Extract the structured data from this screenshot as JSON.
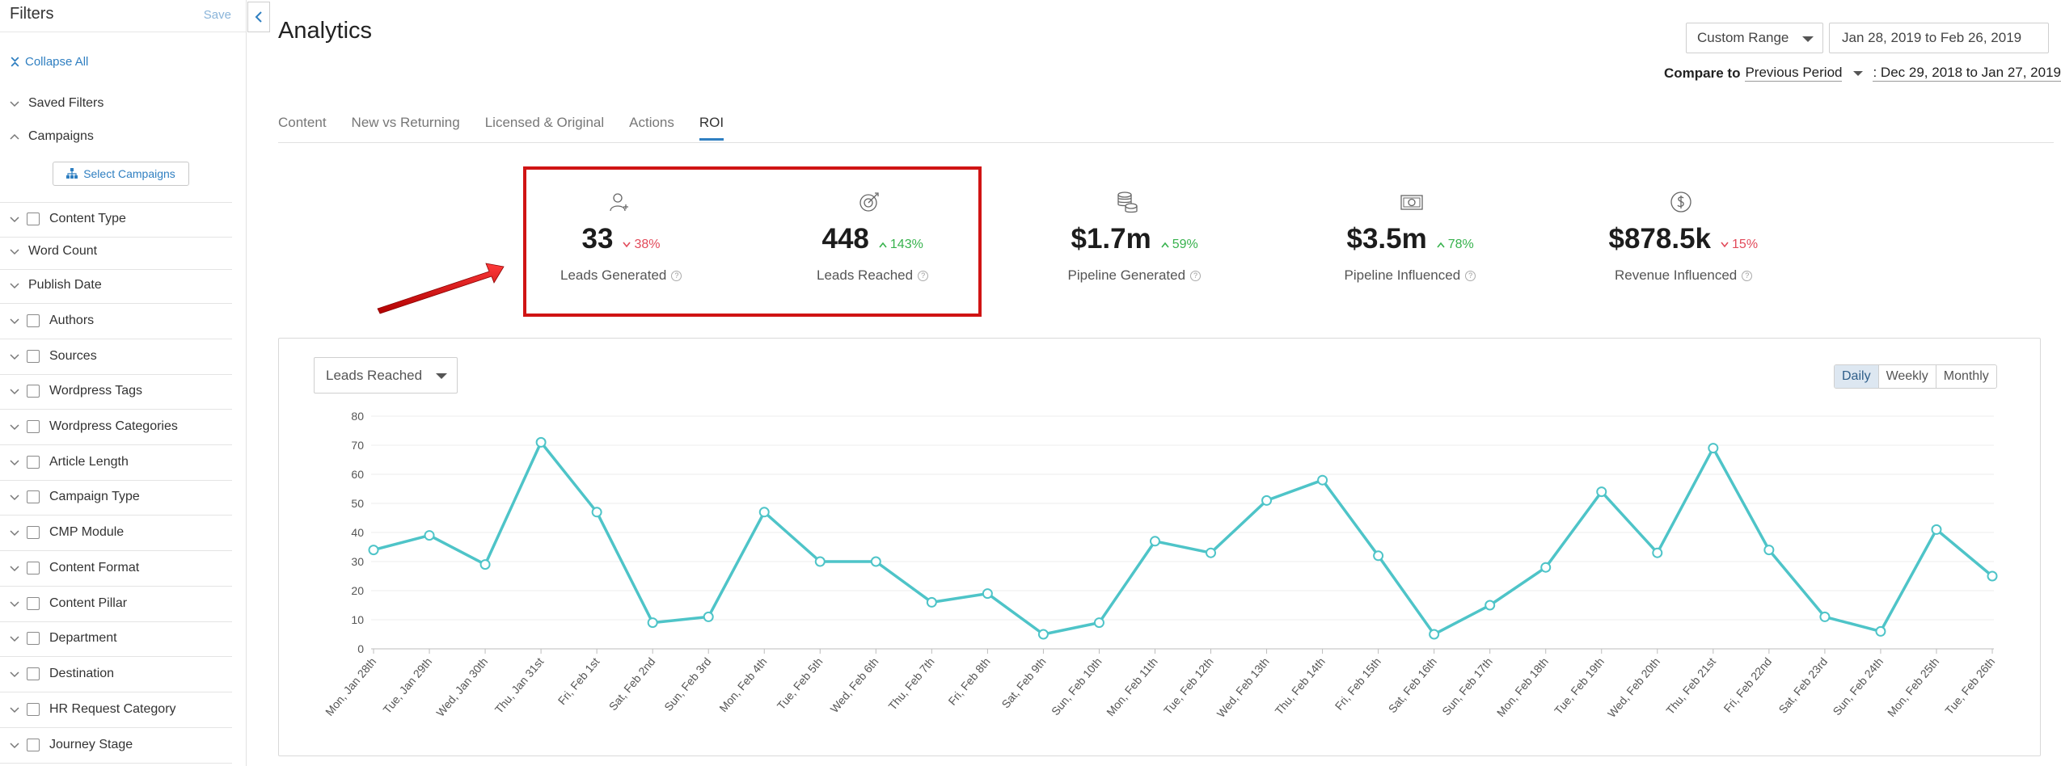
{
  "sidebar": {
    "title": "Filters",
    "save": "Save",
    "collapse_all": "Collapse All",
    "select_campaigns": "Select Campaigns",
    "items": [
      {
        "label": "Saved Filters",
        "checkbox": false,
        "expanded": false
      },
      {
        "label": "Campaigns",
        "checkbox": false,
        "expanded": true
      },
      {
        "label": "Content Type",
        "checkbox": true,
        "expanded": false
      },
      {
        "label": "Word Count",
        "checkbox": false,
        "expanded": false
      },
      {
        "label": "Publish Date",
        "checkbox": false,
        "expanded": false
      },
      {
        "label": "Authors",
        "checkbox": true,
        "expanded": false
      },
      {
        "label": "Sources",
        "checkbox": true,
        "expanded": false
      },
      {
        "label": "Wordpress Tags",
        "checkbox": true,
        "expanded": false
      },
      {
        "label": "Wordpress Categories",
        "checkbox": true,
        "expanded": false
      },
      {
        "label": "Article Length",
        "checkbox": true,
        "expanded": false
      },
      {
        "label": "Campaign Type",
        "checkbox": true,
        "expanded": false
      },
      {
        "label": "CMP Module",
        "checkbox": true,
        "expanded": false
      },
      {
        "label": "Content Format",
        "checkbox": true,
        "expanded": false
      },
      {
        "label": "Content Pillar",
        "checkbox": true,
        "expanded": false
      },
      {
        "label": "Department",
        "checkbox": true,
        "expanded": false
      },
      {
        "label": "Destination",
        "checkbox": true,
        "expanded": false
      },
      {
        "label": "HR Request Category",
        "checkbox": true,
        "expanded": false
      },
      {
        "label": "Journey Stage",
        "checkbox": true,
        "expanded": false
      }
    ]
  },
  "header": {
    "title": "Analytics",
    "range_select": "Custom Range",
    "date_range": "Jan 28, 2019 to Feb 26, 2019",
    "compare_label": "Compare to",
    "compare_period": "Previous Period",
    "compare_range": ": Dec 29, 2018 to Jan 27, 2019"
  },
  "tabs": [
    "Content",
    "New vs Returning",
    "Licensed & Original",
    "Actions",
    "ROI"
  ],
  "active_tab": "ROI",
  "kpis": [
    {
      "value": "33",
      "change": "38%",
      "direction": "down",
      "label": "Leads Generated",
      "icon": "user-plus-icon"
    },
    {
      "value": "448",
      "change": "143%",
      "direction": "up",
      "label": "Leads Reached",
      "icon": "target-icon"
    },
    {
      "value": "$1.7m",
      "change": "59%",
      "direction": "up",
      "label": "Pipeline Generated",
      "icon": "coins-icon"
    },
    {
      "value": "$3.5m",
      "change": "78%",
      "direction": "up",
      "label": "Pipeline Influenced",
      "icon": "banknote-icon"
    },
    {
      "value": "$878.5k",
      "change": "15%",
      "direction": "down",
      "label": "Revenue Influenced",
      "icon": "dollar-circle-icon"
    }
  ],
  "colors": {
    "accent": "#2f7fc1",
    "line": "#4ec4c8",
    "down": "#e24a5a",
    "up": "#37b24d",
    "highlight": "#d01414",
    "arrow": "#e01010"
  },
  "chart_controls": {
    "metric": "Leads Reached",
    "granularity": [
      "Daily",
      "Weekly",
      "Monthly"
    ],
    "granularity_selected": "Daily"
  },
  "chart_data": {
    "type": "line",
    "categories": [
      "Mon, Jan 28th",
      "Tue, Jan 29th",
      "Wed, Jan 30th",
      "Thu, Jan 31st",
      "Fri, Feb 1st",
      "Sat, Feb 2nd",
      "Sun, Feb 3rd",
      "Mon, Feb 4th",
      "Tue, Feb 5th",
      "Wed, Feb 6th",
      "Thu, Feb 7th",
      "Fri, Feb 8th",
      "Sat, Feb 9th",
      "Sun, Feb 10th",
      "Mon, Feb 11th",
      "Tue, Feb 12th",
      "Wed, Feb 13th",
      "Thu, Feb 14th",
      "Fri, Feb 15th",
      "Sat, Feb 16th",
      "Sun, Feb 17th",
      "Mon, Feb 18th",
      "Tue, Feb 19th",
      "Wed, Feb 20th",
      "Thu, Feb 21st",
      "Fri, Feb 22nd",
      "Sat, Feb 23rd",
      "Sun, Feb 24th",
      "Mon, Feb 25th",
      "Tue, Feb 26th"
    ],
    "values": [
      34,
      39,
      29,
      71,
      47,
      9,
      11,
      47,
      30,
      30,
      16,
      19,
      5,
      9,
      37,
      33,
      51,
      58,
      32,
      5,
      15,
      28,
      54,
      33,
      69,
      34,
      11,
      6,
      41,
      25
    ],
    "y_ticks": [
      0,
      10,
      20,
      30,
      40,
      50,
      60,
      70,
      80
    ],
    "ylim": [
      0,
      80
    ],
    "grid": true
  }
}
